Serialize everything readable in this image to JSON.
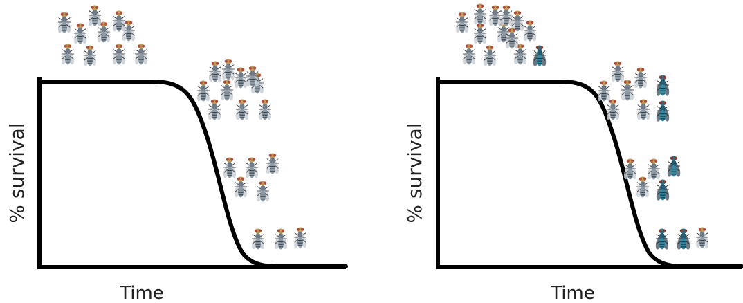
{
  "panels": [
    {
      "id": "left",
      "ylabel": "% survival",
      "xlabel": "Time",
      "fly_groups": [
        {
          "stage": "start",
          "flies": [
            "normal",
            "normal",
            "normal",
            "normal",
            "normal",
            "normal",
            "normal",
            "normal",
            "normal",
            "normal",
            "normal",
            "normal",
            "normal"
          ]
        },
        {
          "stage": "early-decline",
          "flies": [
            "normal",
            "normal",
            "normal",
            "normal",
            "normal",
            "normal",
            "normal",
            "normal",
            "normal",
            "normal"
          ]
        },
        {
          "stage": "mid-decline",
          "flies": [
            "normal",
            "normal",
            "normal",
            "normal",
            "normal"
          ]
        },
        {
          "stage": "end",
          "flies": [
            "normal",
            "normal",
            "normal"
          ]
        }
      ]
    },
    {
      "id": "right",
      "ylabel": "% survival",
      "xlabel": "Time",
      "fly_groups": [
        {
          "stage": "start",
          "flies": [
            "normal",
            "normal",
            "normal",
            "normal",
            "normal",
            "normal",
            "normal",
            "normal",
            "normal",
            "normal",
            "normal",
            "normal",
            "blue"
          ]
        },
        {
          "stage": "early-decline",
          "flies": [
            "normal",
            "normal",
            "normal",
            "normal",
            "blue",
            "normal",
            "normal",
            "blue"
          ]
        },
        {
          "stage": "mid-decline",
          "flies": [
            "normal",
            "normal",
            "blue",
            "normal",
            "blue"
          ]
        },
        {
          "stage": "end",
          "flies": [
            "blue",
            "blue",
            "normal"
          ]
        }
      ]
    }
  ],
  "colors": {
    "axis": "#000000",
    "curve": "#000000",
    "fly_normal_body": "#8d9aa6",
    "fly_blue_body": "#2f6f86",
    "fly_head": "#b89a5a",
    "fly_eye": "#b24a3a",
    "fly_wing": "#c9cfd6"
  },
  "icons": {
    "fly": "fruit-fly-icon"
  }
}
